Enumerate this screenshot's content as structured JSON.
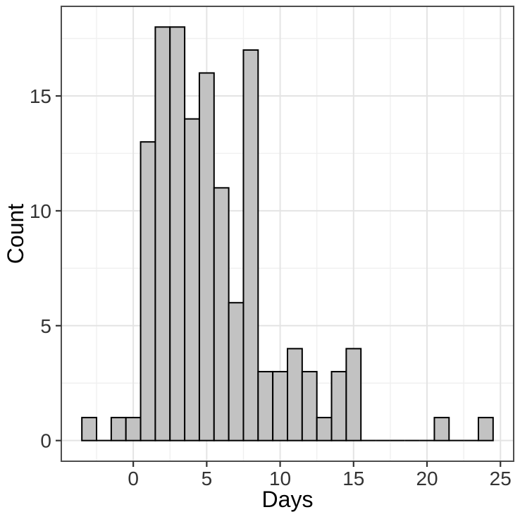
{
  "chart_data": {
    "type": "bar",
    "variant": "histogram",
    "title": "",
    "xlabel": "Days",
    "ylabel": "Count",
    "bin_width": 1,
    "bin_centers": [
      -3,
      -2,
      -1,
      0,
      1,
      2,
      3,
      4,
      5,
      6,
      7,
      8,
      9,
      10,
      11,
      12,
      13,
      14,
      15,
      16,
      17,
      18,
      19,
      20,
      21,
      22,
      23,
      24
    ],
    "counts": [
      1,
      0,
      1,
      1,
      13,
      18,
      18,
      14,
      16,
      11,
      6,
      17,
      3,
      3,
      4,
      3,
      1,
      3,
      4,
      0,
      0,
      0,
      0,
      0,
      1,
      0,
      0,
      1
    ],
    "x_ticks": [
      0,
      5,
      10,
      15,
      20,
      25
    ],
    "y_ticks": [
      0,
      5,
      10,
      15
    ],
    "x_minor_ticks": [
      -2.5,
      2.5,
      7.5,
      12.5,
      17.5,
      22.5
    ],
    "y_minor_ticks": [
      2.5,
      7.5,
      12.5,
      17.5
    ],
    "xlim": [
      -4.9,
      25.9
    ],
    "ylim": [
      -0.9,
      18.9
    ],
    "grid": true,
    "legend": "none",
    "colors": {
      "background": "#ffffff",
      "bar_fill": "#c2c2c2",
      "bar_stroke": "#000000",
      "panel_border": "#4d4d4d",
      "grid_major": "#e4e4e4",
      "grid_minor": "#f0f0f0",
      "tick_mark": "#333333",
      "tick_label": "#333333",
      "axis_title": "#000000"
    }
  }
}
